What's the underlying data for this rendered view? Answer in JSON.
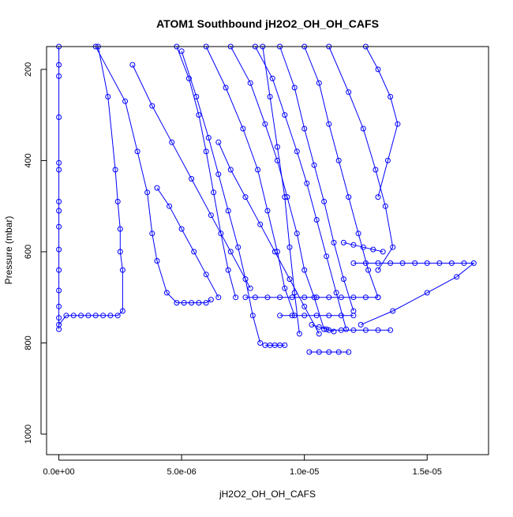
{
  "chart_data": {
    "type": "line",
    "title": "ATOM1 Southbound jH2O2_OH_OH_CAFS",
    "xlabel": "jH2O2_OH_OH_CAFS",
    "ylabel": "Pressure (mbar)",
    "xlim": [
      -5e-07,
      1.75e-05
    ],
    "ylim": [
      1045,
      150
    ],
    "y_axis_inverted": true,
    "x_ticks": [
      0,
      5e-06,
      1e-05,
      1.5e-05
    ],
    "x_tick_labels": [
      "0.0e+00",
      "5.0e-06",
      "1.0e-05",
      "1.5e-05"
    ],
    "y_ticks": [
      200,
      400,
      600,
      800,
      1000
    ],
    "y_tick_labels": [
      "200",
      "400",
      "600",
      "800",
      "1000"
    ],
    "grid": false,
    "legend": "none",
    "marker": "open-circle",
    "color": "#0000ff",
    "series": [
      {
        "x": [
          0,
          0,
          0,
          0,
          0,
          0,
          0,
          0,
          0,
          0,
          0,
          0,
          0,
          0,
          0
        ],
        "y": [
          150,
          190,
          215,
          305,
          405,
          420,
          490,
          510,
          545,
          595,
          640,
          685,
          720,
          745,
          770
        ]
      },
      {
        "x": [
          0,
          3e-07,
          6e-07,
          9e-07,
          1.2e-06,
          1.5e-06,
          1.8e-06,
          2.1e-06,
          2.4e-06,
          2.6e-06,
          2.6e-06,
          2.5e-06,
          2.5e-06,
          2.4e-06,
          2.3e-06,
          2e-06,
          1.6e-06
        ],
        "y": [
          760,
          740,
          740,
          740,
          740,
          740,
          740,
          740,
          740,
          730,
          640,
          600,
          550,
          490,
          420,
          260,
          150
        ]
      },
      {
        "x": [
          1.5e-06,
          2.7e-06,
          3.2e-06,
          3.6e-06,
          3.8e-06,
          4e-06,
          4.4e-06,
          4.8e-06,
          5.1e-06,
          5.4e-06,
          5.7e-06,
          6e-06,
          6.2e-06
        ],
        "y": [
          150,
          270,
          380,
          470,
          560,
          620,
          690,
          712,
          712,
          712,
          712,
          712,
          705
        ]
      },
      {
        "x": [
          4.8e-06,
          5.3e-06,
          5.7e-06,
          6e-06,
          6.3e-06,
          6.6e-06,
          6.9e-06,
          7.2e-06
        ],
        "y": [
          150,
          220,
          300,
          380,
          470,
          560,
          640,
          700
        ]
      },
      {
        "x": [
          5e-06,
          5.6e-06,
          6.1e-06,
          6.5e-06,
          6.9e-06,
          7.3e-06,
          7.6e-06,
          7.9e-06,
          8.2e-06
        ],
        "y": [
          160,
          260,
          350,
          430,
          510,
          590,
          660,
          740,
          800
        ]
      },
      {
        "x": [
          6e-06,
          6.8e-06,
          7.5e-06,
          8.1e-06,
          8.5e-06,
          8.9e-06,
          9.2e-06,
          9.6e-06
        ],
        "y": [
          150,
          240,
          330,
          420,
          510,
          600,
          680,
          740
        ]
      },
      {
        "x": [
          7e-06,
          7.8e-06,
          8.4e-06,
          8.9e-06,
          9.3e-06,
          9.7e-06,
          1e-05,
          1.04e-05,
          1.08e-05
        ],
        "y": [
          150,
          230,
          320,
          400,
          480,
          560,
          640,
          700,
          770
        ]
      },
      {
        "x": [
          8e-06,
          8.7e-06,
          9.2e-06,
          9.7e-06,
          1.01e-05,
          1.05e-05,
          1.09e-05,
          1.13e-05,
          1.17e-05
        ],
        "y": [
          150,
          220,
          300,
          380,
          450,
          530,
          610,
          690,
          770
        ]
      },
      {
        "x": [
          9e-06,
          9.6e-06,
          1e-05,
          1.04e-05,
          1.08e-05,
          1.12e-05,
          1.16e-05,
          1.2e-05
        ],
        "y": [
          150,
          240,
          330,
          410,
          490,
          580,
          660,
          730
        ]
      },
      {
        "x": [
          1e-05,
          1.06e-05,
          1.1e-05,
          1.14e-05,
          1.18e-05,
          1.22e-05,
          1.26e-05,
          1.3e-05
        ],
        "y": [
          150,
          230,
          320,
          400,
          480,
          560,
          640,
          700
        ]
      },
      {
        "x": [
          1.1e-05,
          1.18e-05,
          1.24e-05,
          1.29e-05,
          1.33e-05,
          1.36e-05,
          1.3e-05
        ],
        "y": [
          150,
          250,
          330,
          420,
          500,
          590,
          640
        ]
      },
      {
        "x": [
          1.25e-05,
          1.3e-05,
          1.35e-05,
          1.38e-05,
          1.34e-05,
          1.3e-05
        ],
        "y": [
          150,
          200,
          260,
          320,
          400,
          480
        ]
      },
      {
        "x": [
          8.3e-06,
          8.6e-06,
          8.9e-06,
          9.2e-06,
          9.4e-06,
          9.6e-06,
          9.8e-06
        ],
        "y": [
          150,
          260,
          370,
          480,
          590,
          690,
          780
        ]
      },
      {
        "x": [
          6.5e-06,
          7e-06,
          7.6e-06,
          8.2e-06,
          8.8e-06,
          9.4e-06,
          1e-05,
          1.06e-05
        ],
        "y": [
          360,
          420,
          480,
          540,
          600,
          660,
          720,
          780
        ]
      },
      {
        "x": [
          3e-06,
          3.8e-06,
          4.6e-06,
          5.4e-06,
          6.2e-06,
          7e-06,
          7.8e-06
        ],
        "y": [
          190,
          280,
          360,
          440,
          520,
          600,
          680
        ]
      },
      {
        "x": [
          4e-06,
          4.5e-06,
          5e-06,
          5.5e-06,
          6e-06,
          6.5e-06
        ],
        "y": [
          460,
          500,
          550,
          600,
          650,
          700
        ]
      },
      {
        "x": [
          1.2e-05,
          1.25e-05,
          1.3e-05,
          1.35e-05,
          1.4e-05,
          1.45e-05,
          1.5e-05,
          1.55e-05,
          1.6e-05,
          1.65e-05,
          1.69e-05,
          1.62e-05,
          1.5e-05,
          1.36e-05,
          1.23e-05
        ],
        "y": [
          625,
          625,
          625,
          625,
          625,
          625,
          625,
          625,
          625,
          625,
          625,
          655,
          690,
          730,
          760
        ]
      },
      {
        "x": [
          7.6e-06,
          8e-06,
          8.5e-06,
          9e-06,
          9.5e-06,
          1e-05,
          1.05e-05,
          1.1e-05,
          1.15e-05,
          1.2e-05,
          1.25e-05,
          1.3e-05
        ],
        "y": [
          700,
          700,
          700,
          700,
          700,
          700,
          700,
          700,
          700,
          700,
          700,
          700
        ]
      },
      {
        "x": [
          9e-06,
          9.5e-06,
          1e-05,
          1.05e-05,
          1.1e-05,
          1.15e-05,
          1.2e-05
        ],
        "y": [
          740,
          740,
          740,
          740,
          740,
          740,
          740
        ]
      },
      {
        "x": [
          1.1e-05,
          1.15e-05,
          1.2e-05,
          1.25e-05,
          1.3e-05,
          1.35e-05
        ],
        "y": [
          772,
          772,
          772,
          772,
          772,
          772
        ]
      },
      {
        "x": [
          1.02e-05,
          1.06e-05,
          1.1e-05,
          1.14e-05,
          1.18e-05
        ],
        "y": [
          820,
          820,
          820,
          820,
          820
        ]
      },
      {
        "x": [
          8.4e-06,
          8.6e-06,
          8.8e-06,
          9e-06,
          9.2e-06
        ],
        "y": [
          805,
          805,
          805,
          805,
          805
        ]
      },
      {
        "x": [
          1.03e-05,
          1.06e-05,
          1.09e-05,
          1.12e-05
        ],
        "y": [
          760,
          765,
          770,
          775
        ]
      },
      {
        "x": [
          1.16e-05,
          1.2e-05,
          1.24e-05,
          1.28e-05,
          1.32e-05
        ],
        "y": [
          580,
          585,
          590,
          595,
          600
        ]
      }
    ]
  }
}
